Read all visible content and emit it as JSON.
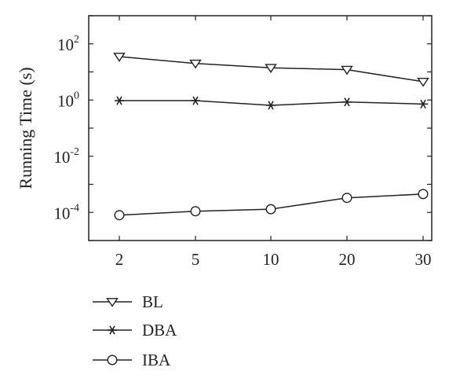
{
  "chart_data": {
    "type": "line",
    "categories": [
      "2",
      "5",
      "10",
      "20",
      "30"
    ],
    "xlabel": "",
    "ylabel": "Running Time (s)",
    "yscale": "log",
    "ylim": [
      1e-05,
      1000
    ],
    "ytick_bases": [
      "10",
      "10",
      "10",
      "10"
    ],
    "ytick_exponents": [
      "2",
      "0",
      "-2",
      "-4"
    ],
    "grid": false,
    "legend": "below",
    "series": [
      {
        "name": "BL",
        "marker": "triangle-down",
        "values": [
          35,
          20,
          14,
          12,
          4.5
        ]
      },
      {
        "name": "DBA",
        "marker": "asterisk",
        "values": [
          0.95,
          0.95,
          0.65,
          0.85,
          0.72
        ]
      },
      {
        "name": "IBA",
        "marker": "circle",
        "values": [
          8e-05,
          0.00011,
          0.00013,
          0.00033,
          0.00045
        ]
      }
    ],
    "colors": {
      "line": "#222222",
      "background": "#ffffff"
    }
  }
}
